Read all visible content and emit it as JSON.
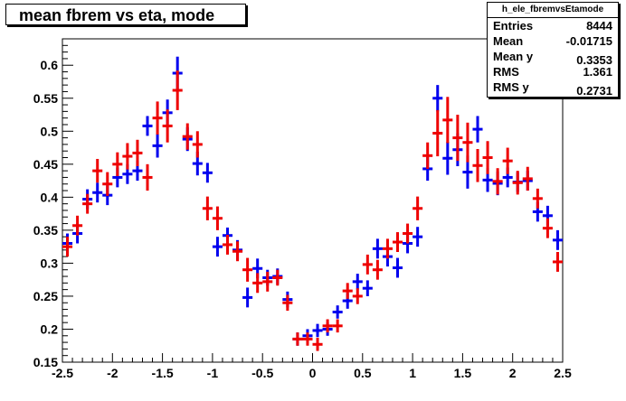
{
  "title": "mean fbrem vs eta, mode",
  "stats": {
    "name": "h_ele_fbremvsEtamode",
    "rows": [
      {
        "label": "Entries",
        "value": "8444"
      },
      {
        "label": "Mean",
        "value": "-0.01715"
      },
      {
        "label": "Mean y",
        "value": "0.3353"
      },
      {
        "label": "RMS",
        "value": "1.361"
      },
      {
        "label": "RMS y",
        "value": "0.2731"
      }
    ]
  },
  "colors": {
    "series_blue": "#0000ee",
    "series_red": "#ee0000",
    "axis": "#000000"
  },
  "chart_data": {
    "type": "scatter",
    "title": "mean fbrem vs eta, mode",
    "xlabel": "",
    "ylabel": "",
    "xlim": [
      -2.5,
      2.5
    ],
    "ylim": [
      0.15,
      0.64
    ],
    "x_ticks": [
      "-2.5",
      "-2",
      "-1.5",
      "-1",
      "-0.5",
      "0",
      "0.5",
      "1",
      "1.5",
      "2",
      "2.5"
    ],
    "y_ticks": [
      "0.15",
      "0.2",
      "0.25",
      "0.3",
      "0.35",
      "0.4",
      "0.45",
      "0.5",
      "0.55",
      "0.6"
    ],
    "bin_half_width": 0.05,
    "series": [
      {
        "color": "blue",
        "x": [
          -2.45,
          -2.35,
          -2.25,
          -2.15,
          -2.05,
          -1.95,
          -1.85,
          -1.75,
          -1.65,
          -1.55,
          -1.45,
          -1.35,
          -1.25,
          -1.15,
          -1.05,
          -0.95,
          -0.85,
          -0.75,
          -0.65,
          -0.55,
          -0.45,
          -0.35,
          -0.25,
          -0.15,
          -0.05,
          0.05,
          0.15,
          0.25,
          0.35,
          0.45,
          0.55,
          0.65,
          0.75,
          0.85,
          0.95,
          1.05,
          1.15,
          1.25,
          1.35,
          1.45,
          1.55,
          1.65,
          1.75,
          1.85,
          1.95,
          2.05,
          2.15,
          2.25,
          2.35,
          2.45
        ],
        "y": [
          0.33,
          0.345,
          0.397,
          0.407,
          0.403,
          0.43,
          0.435,
          0.44,
          0.508,
          0.478,
          0.528,
          0.588,
          0.488,
          0.451,
          0.437,
          0.325,
          0.342,
          0.32,
          0.248,
          0.292,
          0.278,
          0.28,
          0.245,
          0.185,
          0.19,
          0.198,
          0.2,
          0.226,
          0.243,
          0.272,
          0.262,
          0.322,
          0.31,
          0.293,
          0.33,
          0.34,
          0.443,
          0.55,
          0.459,
          0.472,
          0.438,
          0.503,
          0.426,
          0.421,
          0.43,
          0.423,
          0.425,
          0.378,
          0.372,
          0.335
        ],
        "err": [
          0.015,
          0.015,
          0.015,
          0.015,
          0.015,
          0.015,
          0.015,
          0.015,
          0.015,
          0.018,
          0.02,
          0.025,
          0.018,
          0.018,
          0.015,
          0.015,
          0.012,
          0.015,
          0.015,
          0.015,
          0.012,
          0.012,
          0.012,
          0.01,
          0.01,
          0.01,
          0.01,
          0.01,
          0.012,
          0.012,
          0.012,
          0.015,
          0.015,
          0.015,
          0.015,
          0.015,
          0.018,
          0.02,
          0.025,
          0.025,
          0.025,
          0.02,
          0.018,
          0.018,
          0.015,
          0.015,
          0.015,
          0.015,
          0.015,
          0.015
        ]
      },
      {
        "color": "red",
        "x": [
          -2.45,
          -2.35,
          -2.25,
          -2.15,
          -2.05,
          -1.95,
          -1.85,
          -1.75,
          -1.65,
          -1.55,
          -1.45,
          -1.35,
          -1.25,
          -1.15,
          -1.05,
          -0.95,
          -0.85,
          -0.75,
          -0.65,
          -0.55,
          -0.45,
          -0.35,
          -0.25,
          -0.15,
          -0.05,
          0.05,
          0.15,
          0.25,
          0.35,
          0.45,
          0.55,
          0.65,
          0.75,
          0.85,
          0.95,
          1.05,
          1.15,
          1.25,
          1.35,
          1.45,
          1.55,
          1.65,
          1.75,
          1.85,
          1.95,
          2.05,
          2.15,
          2.25,
          2.35,
          2.45
        ],
        "y": [
          0.325,
          0.357,
          0.39,
          0.44,
          0.42,
          0.45,
          0.462,
          0.467,
          0.43,
          0.52,
          0.508,
          0.562,
          0.492,
          0.48,
          0.383,
          0.368,
          0.328,
          0.318,
          0.29,
          0.27,
          0.272,
          0.278,
          0.24,
          0.185,
          0.185,
          0.177,
          0.205,
          0.205,
          0.258,
          0.25,
          0.298,
          0.29,
          0.322,
          0.332,
          0.345,
          0.383,
          0.463,
          0.497,
          0.517,
          0.49,
          0.483,
          0.448,
          0.46,
          0.424,
          0.455,
          0.422,
          0.428,
          0.398,
          0.353,
          0.302
        ],
        "err": [
          0.015,
          0.015,
          0.015,
          0.018,
          0.018,
          0.018,
          0.02,
          0.02,
          0.02,
          0.025,
          0.025,
          0.03,
          0.02,
          0.02,
          0.018,
          0.018,
          0.015,
          0.015,
          0.018,
          0.015,
          0.015,
          0.012,
          0.012,
          0.01,
          0.01,
          0.01,
          0.01,
          0.01,
          0.012,
          0.012,
          0.015,
          0.015,
          0.015,
          0.015,
          0.015,
          0.018,
          0.02,
          0.035,
          0.035,
          0.035,
          0.03,
          0.025,
          0.025,
          0.02,
          0.02,
          0.018,
          0.018,
          0.015,
          0.015,
          0.015
        ]
      }
    ]
  }
}
